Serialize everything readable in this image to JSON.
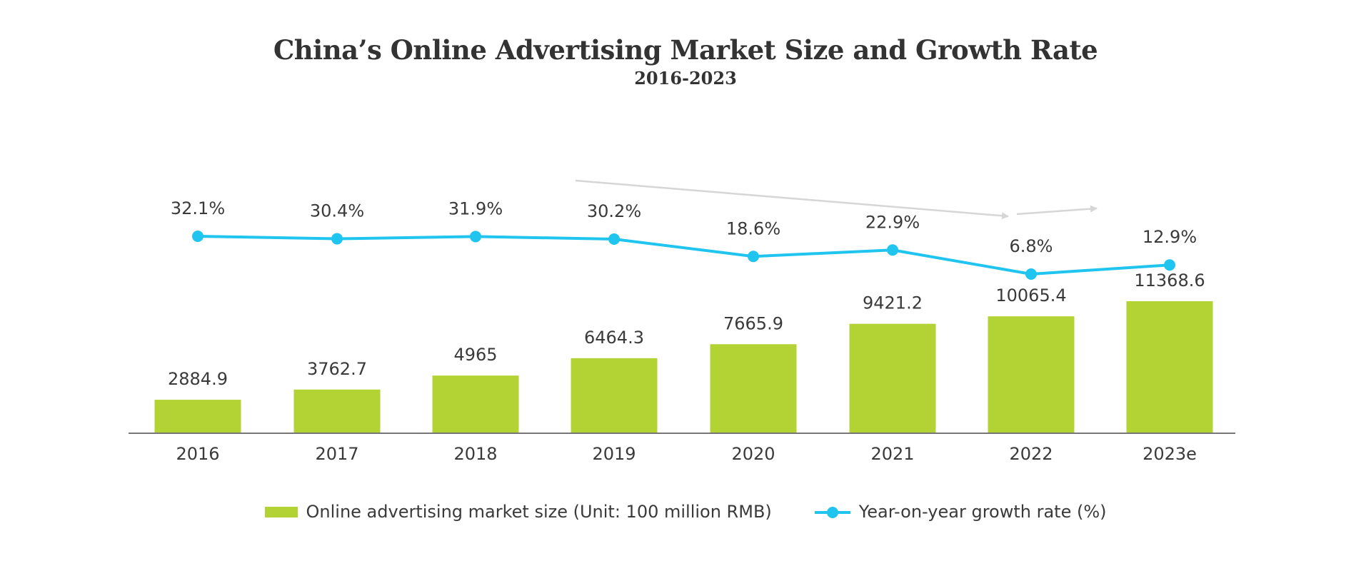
{
  "chart_data": {
    "type": "bar",
    "title": "China’s Online Advertising Market Size and Growth Rate",
    "subtitle": "2016-2023",
    "categories": [
      "2016",
      "2017",
      "2018",
      "2019",
      "2020",
      "2021",
      "2022",
      "2023e"
    ],
    "series": [
      {
        "name": "Online advertising market size (Unit: 100 million RMB)",
        "type": "bar",
        "values": [
          2884.9,
          3762.7,
          4965,
          6464.3,
          7665.9,
          9421.2,
          10065.4,
          11368.6
        ],
        "labels": [
          "2884.9",
          "3762.7",
          "4965",
          "6464.3",
          "7665.9",
          "9421.2",
          "10065.4",
          "11368.6"
        ],
        "color": "#b3d334"
      },
      {
        "name": "Year-on-year growth rate (%)",
        "type": "line",
        "values": [
          32.1,
          30.4,
          31.9,
          30.2,
          18.6,
          22.9,
          6.8,
          12.9
        ],
        "labels": [
          "32.1%",
          "30.4%",
          "31.9%",
          "30.2%",
          "18.6%",
          "22.9%",
          "6.8%",
          "12.9%"
        ],
        "color": "#1fc4ef"
      }
    ],
    "annotations": [
      "downward trend arrow",
      "upward trend arrow"
    ],
    "grid": false,
    "legend": "bottom",
    "colors": {
      "bar": "#b3d334",
      "line": "#1fc4ef",
      "axis": "#777777",
      "text": "#3a3a3a",
      "arrow": "#d6d6d6"
    }
  }
}
